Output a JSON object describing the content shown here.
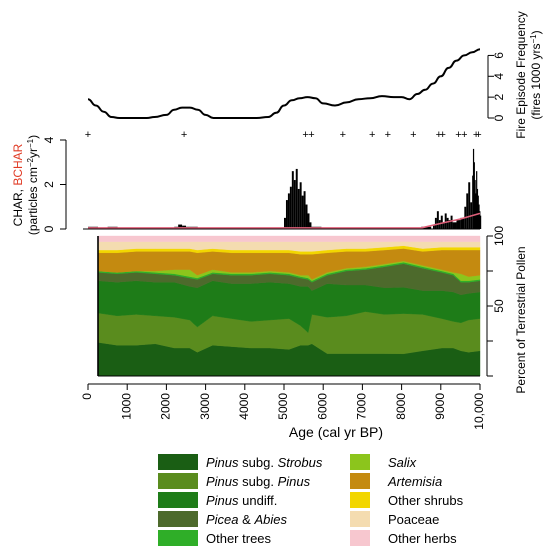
{
  "chart_data": [
    {
      "type": "line",
      "ylabel_line1": "Fire Episode Frequency",
      "ylabel_line2": "(fires 1000 yrs",
      "ylabel_sup": "−1",
      "ylabel_close": ")",
      "yticks": [
        "0",
        "2",
        "4",
        "6"
      ],
      "ylim": [
        0,
        7
      ],
      "xlim": [
        0,
        10000
      ],
      "x": [
        0,
        200,
        400,
        600,
        800,
        1000,
        1500,
        1700,
        2000,
        2200,
        2400,
        2600,
        2800,
        3000,
        3200,
        3500,
        4000,
        4300,
        4600,
        4800,
        5000,
        5200,
        5400,
        5600,
        5800,
        6000,
        6300,
        6600,
        6900,
        7200,
        7500,
        7800,
        8000,
        8200,
        8400,
        8600,
        8800,
        9000,
        9200,
        9400,
        9600,
        9800,
        10000
      ],
      "values": [
        1.8,
        1.2,
        0.6,
        0.1,
        0.0,
        0.0,
        0.0,
        0.1,
        0.3,
        0.8,
        1.0,
        1.0,
        0.8,
        0.3,
        0.0,
        0.0,
        0.0,
        0.0,
        0.1,
        0.5,
        1.2,
        1.7,
        1.9,
        2.0,
        1.9,
        1.4,
        1.2,
        1.5,
        1.8,
        1.9,
        2.1,
        2.0,
        2.0,
        1.8,
        2.3,
        2.7,
        3.3,
        4.0,
        4.8,
        5.5,
        6.0,
        6.3,
        6.6
      ],
      "fire_episodes": [
        0,
        2450,
        5550,
        5700,
        6500,
        7250,
        7650,
        8300,
        8950,
        9050,
        9450,
        9600,
        9900,
        9960
      ]
    },
    {
      "type": "bar",
      "ylabel_char": "CHAR, ",
      "ylabel_bchar": "BCHAR",
      "ylabel_line2": "(particles cm",
      "ylabel_sup1": "−2",
      "ylabel_mid": "yr",
      "ylabel_sup2": "−1",
      "ylabel_close": ")",
      "yticks": [
        "0",
        "2",
        "4"
      ],
      "ylim": [
        0,
        4
      ],
      "xlim": [
        0,
        10000
      ],
      "x": [
        0,
        500,
        1000,
        1500,
        2000,
        2200,
        2300,
        2400,
        2500,
        2600,
        2800,
        3000,
        3500,
        4000,
        4500,
        5000,
        5050,
        5100,
        5150,
        5200,
        5250,
        5300,
        5350,
        5400,
        5450,
        5500,
        5550,
        5600,
        5650,
        5700,
        6000,
        6500,
        7000,
        7500,
        8000,
        8500,
        8800,
        8850,
        8900,
        8950,
        9000,
        9050,
        9100,
        9150,
        9200,
        9250,
        9300,
        9400,
        9500,
        9600,
        9650,
        9700,
        9750,
        9800,
        9820,
        9840,
        9860,
        9880,
        9900,
        9920,
        9940,
        9960,
        9980,
        10000
      ],
      "values": [
        0.1,
        0.1,
        0.05,
        0.05,
        0.05,
        0.1,
        0.2,
        0.15,
        0.1,
        0.1,
        0.05,
        0.05,
        0.05,
        0.05,
        0.05,
        0.5,
        1.3,
        1.6,
        1.9,
        2.6,
        2.2,
        2.7,
        1.8,
        2.1,
        1.5,
        1.7,
        1.1,
        0.7,
        0.3,
        0.1,
        0.05,
        0.05,
        0.05,
        0.05,
        0.05,
        0.1,
        0.2,
        0.5,
        0.8,
        0.4,
        0.6,
        0.3,
        0.7,
        0.5,
        0.4,
        0.6,
        0.3,
        0.4,
        0.5,
        1.0,
        1.6,
        2.1,
        1.2,
        2.4,
        3.6,
        3.0,
        2.2,
        1.6,
        2.6,
        1.8,
        1.5,
        1.1,
        0.8,
        0.6
      ],
      "bchar": {
        "x": [
          0,
          8500,
          9000,
          9500,
          10000
        ],
        "values": [
          0.05,
          0.05,
          0.25,
          0.45,
          0.7
        ]
      }
    },
    {
      "type": "area",
      "stacked": true,
      "xlabel": "Age (cal yr BP)",
      "ylabel": "Percent of Terrestrial Pollen",
      "xlim": [
        0,
        10000
      ],
      "ylim": [
        0,
        100
      ],
      "xticks": [
        "0",
        "1000",
        "2000",
        "3000",
        "4000",
        "5000",
        "6000",
        "7000",
        "8000",
        "9000",
        "10,000"
      ],
      "yticks": [
        "50",
        "100"
      ],
      "x": [
        0,
        500,
        1000,
        1500,
        2000,
        2400,
        2600,
        3000,
        3500,
        4000,
        4500,
        5000,
        5300,
        5500,
        5600,
        6000,
        6500,
        7000,
        7500,
        8000,
        8500,
        9000,
        9300,
        9500,
        9700,
        10000
      ],
      "series": [
        {
          "name": "Pinus subg. Strobus",
          "color": "#1a5e14",
          "values": [
            24,
            22,
            22,
            23,
            20,
            20,
            17,
            22,
            21,
            20,
            20,
            19,
            22,
            22,
            23,
            16,
            16,
            16,
            16,
            16,
            18,
            20,
            20,
            18,
            17,
            18
          ]
        },
        {
          "name": "Pinus subg. Pinus",
          "color": "#5a8c1e",
          "values": [
            21,
            21,
            22,
            20,
            22,
            20,
            18,
            21,
            20,
            19,
            20,
            22,
            14,
            9,
            21,
            26,
            27,
            30,
            28,
            29,
            26,
            21,
            19,
            20,
            23,
            23
          ]
        },
        {
          "name": "Pinus undiff.",
          "color": "#1e7c18",
          "values": [
            23,
            24,
            24,
            24,
            25,
            24,
            28,
            25,
            25,
            27,
            27,
            25,
            28,
            33,
            17,
            24,
            22,
            19,
            19,
            19,
            17,
            20,
            21,
            20,
            19,
            19
          ]
        },
        {
          "name": "Picea & Abies",
          "color": "#4d6a2c",
          "values": [
            6,
            6,
            6,
            6,
            5,
            6,
            6,
            5,
            6,
            6,
            6,
            6,
            6,
            5,
            6,
            6,
            10,
            11,
            15,
            17,
            16,
            13,
            12,
            9,
            8,
            8
          ]
        },
        {
          "name": "Other trees",
          "color": "#2fae28",
          "values": [
            1,
            1,
            1,
            1,
            1,
            1,
            1,
            1,
            1,
            1,
            1,
            1,
            1,
            1,
            1,
            1,
            1,
            1,
            1,
            1,
            1,
            1,
            1,
            1,
            1,
            1
          ]
        },
        {
          "name": "Salix",
          "color": "#8cc51c",
          "values": [
            0,
            0,
            0,
            1,
            3,
            5,
            2,
            2,
            1,
            1,
            1,
            1,
            1,
            2,
            1,
            1,
            1,
            1,
            1,
            1,
            1,
            1,
            1,
            5,
            3,
            3
          ]
        },
        {
          "name": "Artemisia",
          "color": "#c48a10",
          "values": [
            13,
            14,
            14,
            14,
            13,
            13,
            16,
            13,
            14,
            14,
            13,
            14,
            15,
            15,
            18,
            14,
            12,
            11,
            10,
            9,
            10,
            14,
            16,
            17,
            19,
            18
          ]
        },
        {
          "name": "Other shrubs",
          "color": "#f2d600",
          "values": [
            2,
            2,
            2,
            2,
            2,
            2,
            2,
            2,
            2,
            2,
            2,
            2,
            2,
            2,
            2,
            2,
            2,
            2,
            2,
            2,
            2,
            2,
            2,
            2,
            2,
            2
          ]
        },
        {
          "name": "Poaceae",
          "color": "#f4dcb0",
          "values": [
            6,
            6,
            5,
            5,
            5,
            5,
            6,
            5,
            6,
            6,
            6,
            6,
            7,
            7,
            7,
            6,
            5,
            5,
            4,
            3,
            5,
            4,
            4,
            4,
            4,
            4
          ]
        },
        {
          "name": "Other herbs",
          "color": "#f7c7cf",
          "values": [
            4,
            4,
            4,
            4,
            4,
            4,
            4,
            4,
            4,
            4,
            4,
            4,
            4,
            4,
            4,
            4,
            4,
            4,
            4,
            4,
            4,
            4,
            4,
            4,
            4,
            4
          ]
        }
      ]
    }
  ],
  "legend": {
    "items": [
      {
        "pre": "",
        "it": "Pinus",
        "post": " subg. ",
        "it2": "Strobus",
        "color": "#1a5e14"
      },
      {
        "pre": "",
        "it": "Pinus",
        "post": " subg. ",
        "it2": "Pinus",
        "color": "#5a8c1e"
      },
      {
        "pre": "",
        "it": "Pinus",
        "post": " undiff.",
        "it2": "",
        "color": "#1e7c18"
      },
      {
        "pre": "",
        "it": "Picea",
        "post": " & ",
        "it2": "Abies",
        "color": "#4d6a2c"
      },
      {
        "pre": "Other trees",
        "it": "",
        "post": "",
        "it2": "",
        "color": "#2fae28"
      },
      {
        "pre": "",
        "it": "Salix",
        "post": "",
        "it2": "",
        "color": "#8cc51c"
      },
      {
        "pre": "",
        "it": "Artemisia",
        "post": "",
        "it2": "",
        "color": "#c48a10"
      },
      {
        "pre": "Other shrubs",
        "it": "",
        "post": "",
        "it2": "",
        "color": "#f2d600"
      },
      {
        "pre": "Poaceae",
        "it": "",
        "post": "",
        "it2": "",
        "color": "#f4dcb0"
      },
      {
        "pre": "Other herbs",
        "it": "",
        "post": "",
        "it2": "",
        "color": "#f7c7cf"
      }
    ]
  },
  "colors": {
    "axis": "#000000",
    "bchar_line": "#e0607a",
    "bchar_label": "#e03a24"
  }
}
